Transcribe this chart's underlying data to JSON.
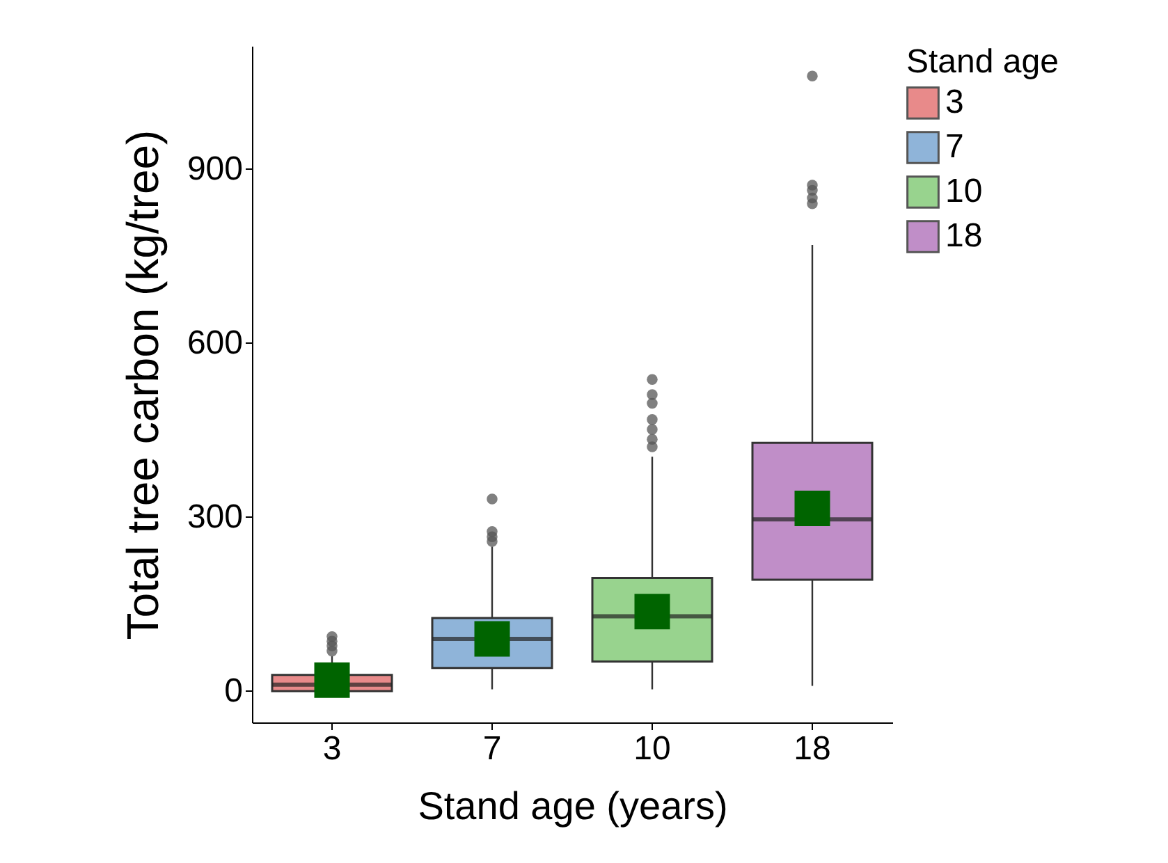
{
  "chart_data": {
    "type": "box",
    "xlabel": "Stand age (years)",
    "ylabel": "Total tree carbon (kg/tree)",
    "legend_title": "Stand age",
    "legend": "right",
    "grid": false,
    "categories": [
      "3",
      "7",
      "10",
      "18"
    ],
    "ylim": [
      -54,
      1112
    ],
    "yticks": [
      0,
      300,
      600,
      900
    ],
    "series": [
      {
        "name": "3",
        "color": "#e88a8a",
        "boxes": [
          {
            "low": 0,
            "q1": 0,
            "median": 11,
            "q3": 28,
            "high": 60,
            "mean": 19,
            "outliers": [
              69,
              78,
              86,
              94
            ]
          },
          null,
          null,
          null
        ]
      },
      {
        "name": "7",
        "color": "#8fb4d9",
        "boxes": [
          null,
          {
            "low": 3,
            "q1": 40,
            "median": 90,
            "q3": 126,
            "high": 249,
            "mean": 90,
            "outliers": [
              258,
              266,
              275,
              331
            ]
          },
          null,
          null
        ]
      },
      {
        "name": "10",
        "color": "#98d38e",
        "boxes": [
          null,
          null,
          {
            "low": 3,
            "q1": 51,
            "median": 129,
            "q3": 195,
            "high": 404,
            "mean": 137,
            "outliers": [
              421,
              434,
              451,
              468,
              496,
              511,
              537
            ]
          },
          null
        ]
      },
      {
        "name": "18",
        "color": "#c08ec8",
        "boxes": [
          null,
          null,
          null,
          {
            "low": 9,
            "q1": 192,
            "median": 296,
            "q3": 428,
            "high": 769,
            "mean": 315,
            "outliers": [
              840,
              850,
              863,
              872,
              1060
            ]
          }
        ]
      }
    ]
  }
}
